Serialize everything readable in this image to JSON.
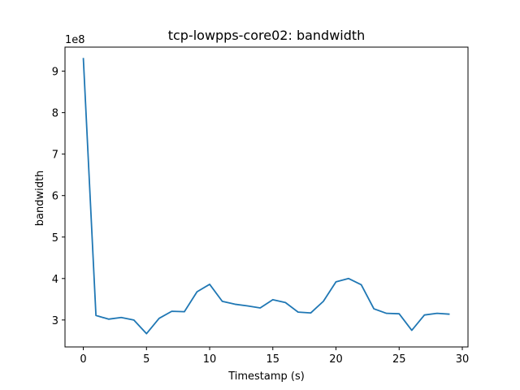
{
  "chart_data": {
    "type": "line",
    "title": "tcp-lowpps-core02: bandwidth",
    "xlabel": "Timestamp (s)",
    "ylabel": "bandwidth",
    "y_offset_label": "1e8",
    "y_scale": 100000000,
    "xlim": [
      -1.45,
      30.45
    ],
    "ylim": [
      235000000,
      958000000
    ],
    "x_ticks": [
      0,
      5,
      10,
      15,
      20,
      25,
      30
    ],
    "y_ticks": [
      300000000,
      400000000,
      500000000,
      600000000,
      700000000,
      800000000,
      900000000
    ],
    "y_tick_labels": [
      "3",
      "4",
      "5",
      "6",
      "7",
      "8",
      "9"
    ],
    "grid": false,
    "line_color": "#1f77b4",
    "series": [
      {
        "x": [
          0,
          1,
          2,
          3,
          4,
          5,
          6,
          7,
          8,
          9,
          10,
          11,
          12,
          13,
          14,
          15,
          16,
          17,
          18,
          19,
          20,
          21,
          22,
          23,
          24,
          25,
          26,
          27,
          28,
          29
        ],
        "values": [
          932000000,
          311000000,
          302000000,
          306000000,
          300000000,
          267000000,
          304000000,
          321000000,
          320000000,
          368000000,
          386000000,
          345000000,
          338000000,
          334000000,
          329000000,
          349000000,
          342000000,
          319000000,
          317000000,
          345000000,
          392000000,
          400000000,
          385000000,
          327000000,
          316000000,
          315000000,
          275000000,
          312000000,
          316000000,
          314000000
        ]
      }
    ]
  }
}
